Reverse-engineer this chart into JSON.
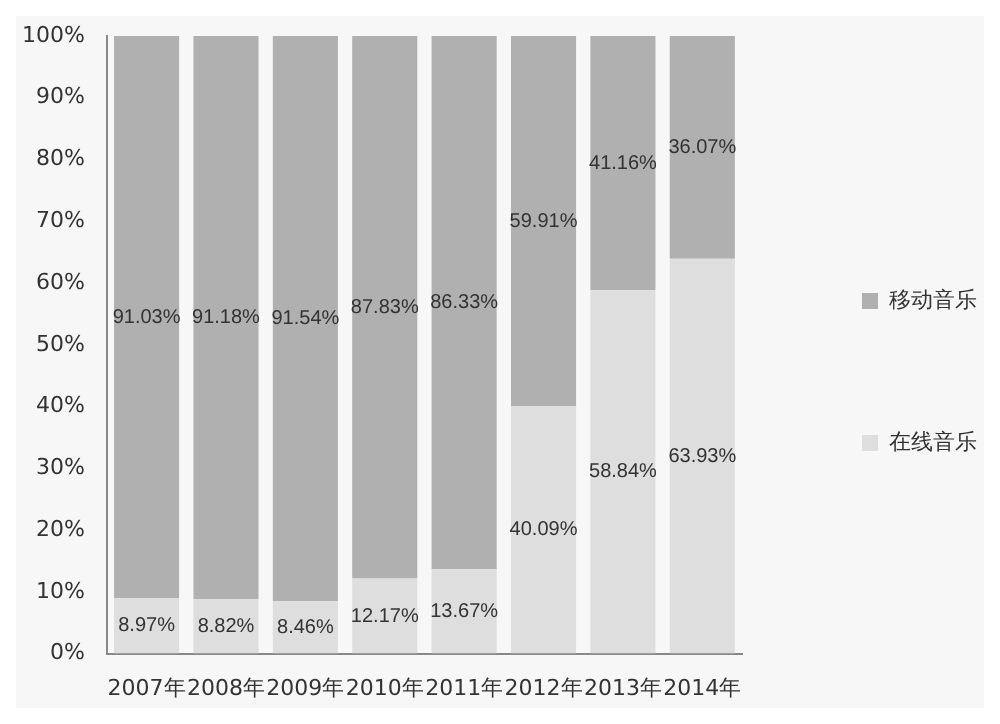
{
  "chart_data": {
    "type": "bar",
    "stacked": true,
    "categories": [
      "2007年",
      "2008年",
      "2009年",
      "2010年",
      "2011年",
      "2012年",
      "2013年",
      "2014年"
    ],
    "series": [
      {
        "name": "在线音乐",
        "color": "#dedede",
        "values": [
          8.97,
          8.82,
          8.46,
          12.17,
          13.67,
          40.09,
          58.84,
          63.93
        ],
        "value_labels": [
          "8.97%",
          "8.82%",
          "8.46%",
          "12.17%",
          "13.67%",
          "40.09%",
          "58.84%",
          "63.93%"
        ]
      },
      {
        "name": "移动音乐",
        "color": "#b0b0b0",
        "values": [
          91.03,
          91.18,
          91.54,
          87.83,
          86.33,
          59.91,
          41.16,
          36.07
        ],
        "value_labels": [
          "91.03%",
          "91.18%",
          "91.54%",
          "87.83%",
          "86.33%",
          "59.91%",
          "41.16%",
          "36.07%"
        ]
      }
    ],
    "ylim": [
      0,
      100
    ],
    "yticks": [
      {
        "value": 0,
        "label": "0%"
      },
      {
        "value": 10,
        "label": "10%"
      },
      {
        "value": 20,
        "label": "20%"
      },
      {
        "value": 30,
        "label": "30%"
      },
      {
        "value": 40,
        "label": "40%"
      },
      {
        "value": 50,
        "label": "50%"
      },
      {
        "value": 60,
        "label": "60%"
      },
      {
        "value": 70,
        "label": "70%"
      },
      {
        "value": 80,
        "label": "80%"
      },
      {
        "value": 90,
        "label": "90%"
      },
      {
        "value": 100,
        "label": "100%"
      }
    ],
    "grid": false,
    "legend": "right"
  }
}
